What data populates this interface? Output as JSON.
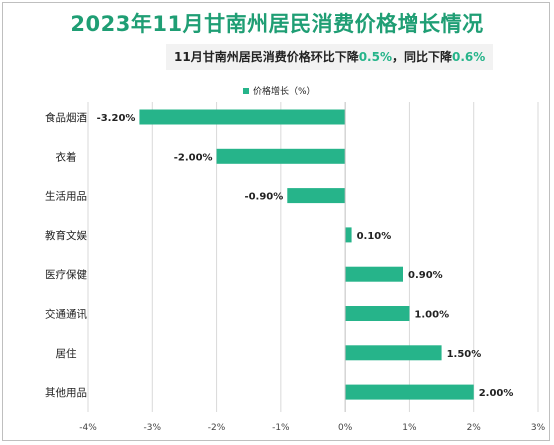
{
  "title": "2023年11月甘南州居民消费价格增长情况",
  "subtitle": {
    "part1": "11月甘南州居民消费价格环比下降",
    "val1": "0.5%",
    "part2": "，同比下降",
    "val2": "0.6%"
  },
  "colors": {
    "title": "#1f9e74",
    "bar": "#26b48a",
    "highlight": "#26b48a",
    "grid": "#d9d9d9",
    "axis_text": "#444444"
  },
  "chart_data": {
    "type": "bar",
    "orientation": "horizontal",
    "categories": [
      "食品烟酒",
      "衣着",
      "生活用品",
      "教育文娱",
      "医疗保健",
      "交通通讯",
      "居住",
      "其他用品"
    ],
    "series": [
      {
        "name": "价格增长（%）",
        "values": [
          -3.2,
          -2.0,
          -0.9,
          0.1,
          0.9,
          1.0,
          1.5,
          2.0
        ]
      }
    ],
    "data_labels": [
      "-3.20%",
      "-2.00%",
      "-0.90%",
      "0.10%",
      "0.90%",
      "1.00%",
      "1.50%",
      "2.00%"
    ],
    "x_ticks": [
      "-4%",
      "-3%",
      "-2%",
      "-1%",
      "0%",
      "1%",
      "2%",
      "3%"
    ],
    "xlim": [
      -4,
      3
    ],
    "grid": "vertical",
    "legend": "top-center"
  }
}
